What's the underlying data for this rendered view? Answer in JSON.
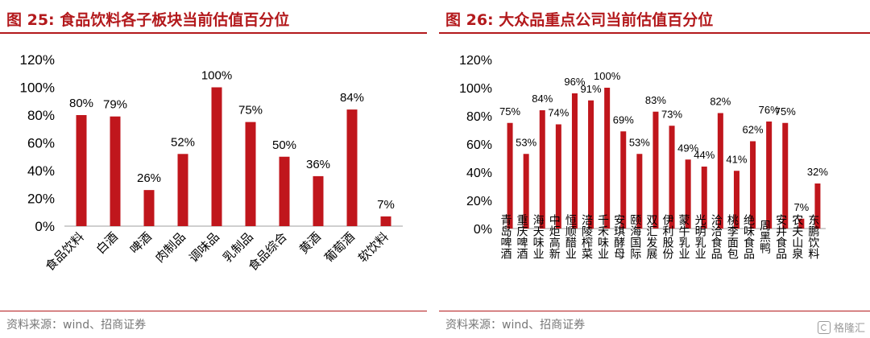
{
  "watermark": {
    "text": "格隆汇",
    "icon": "gelonghui-logo-icon"
  },
  "colors": {
    "bar": "#c0161c",
    "title": "#b3191c",
    "axis": "#bfbfbf",
    "text": "#000000"
  },
  "panels": [
    {
      "title": "图 25:  食品饮料各子板块当前估值百分位",
      "source": "资料来源：wind、招商证券",
      "chart_data": {
        "type": "bar",
        "title": "图 25:  食品饮料各子板块当前估值百分位",
        "categories": [
          "食品饮料",
          "白酒",
          "啤酒",
          "肉制品",
          "调味品",
          "乳制品",
          "食品综合",
          "黄酒",
          "葡萄酒",
          "软饮料"
        ],
        "values": [
          80,
          79,
          26,
          52,
          100,
          75,
          50,
          36,
          84,
          7
        ],
        "value_labels": [
          "80%",
          "79%",
          "26%",
          "52%",
          "100%",
          "75%",
          "50%",
          "36%",
          "84%",
          "7%"
        ],
        "ylim": [
          0,
          120
        ],
        "yticks": [
          0,
          20,
          40,
          60,
          80,
          100,
          120
        ],
        "ytick_labels": [
          "0%",
          "20%",
          "40%",
          "60%",
          "80%",
          "100%",
          "120%"
        ],
        "xlabel": "",
        "ylabel": "",
        "grid": false,
        "legend": "none"
      }
    },
    {
      "title": "图 26:  大众品重点公司当前估值百分位",
      "source": "资料来源：wind、招商证券",
      "chart_data": {
        "type": "bar",
        "title": "图 26:  大众品重点公司当前估值百分位",
        "categories": [
          "青岛啤酒",
          "重庆啤酒",
          "海天味业",
          "中炬高新",
          "恒顺醋业",
          "涪陵榨菜",
          "千禾味业",
          "安琪酵母",
          "颐海国际",
          "双汇发展",
          "伊利股份",
          "蒙牛乳业",
          "光明乳业",
          "洽洽食品",
          "桃李面包",
          "绝味食品",
          "周黑鸭",
          "安井食品",
          "农夫山泉",
          "东鹏饮料"
        ],
        "values": [
          75,
          53,
          84,
          74,
          96,
          91,
          100,
          69,
          53,
          83,
          73,
          49,
          44,
          82,
          41,
          62,
          76,
          75,
          7,
          32
        ],
        "value_labels": [
          "75%",
          "53%",
          "84%",
          "74%",
          "96%",
          "91%",
          "100%",
          "69%",
          "53%",
          "83%",
          "73%",
          "49%",
          "44%",
          "82%",
          "41%",
          "62%",
          "76%",
          "75%",
          "7%",
          "32%"
        ],
        "ylim": [
          0,
          120
        ],
        "yticks": [
          0,
          20,
          40,
          60,
          80,
          100,
          120
        ],
        "ytick_labels": [
          "0%",
          "20%",
          "40%",
          "60%",
          "80%",
          "100%",
          "120%"
        ],
        "xlabel": "",
        "ylabel": "",
        "grid": false,
        "legend": "none"
      }
    }
  ]
}
